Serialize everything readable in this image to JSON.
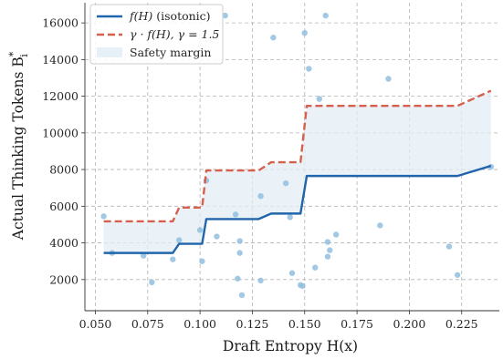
{
  "chart_data": {
    "type": "scatter",
    "xlabel": "Draft Entropy H(x)",
    "ylabel": "Actual Thinking Tokens B",
    "ylabel_sup": "*",
    "ylabel_sub": "i",
    "xlim": [
      0.045,
      0.243
    ],
    "ylim": [
      300,
      17100
    ],
    "xticks": [
      "0.050",
      "0.075",
      "0.100",
      "0.125",
      "0.150",
      "0.175",
      "0.200",
      "0.225"
    ],
    "yticks": [
      "2000",
      "4000",
      "6000",
      "8000",
      "10000",
      "12000",
      "14000",
      "16000"
    ],
    "grid": true,
    "legend_position": "top-left",
    "legend": [
      {
        "key": "isotonic",
        "label_prefix": "f(H)",
        "label_suffix": " (isotonic)"
      },
      {
        "key": "scaled",
        "label_prefix": "γ · f(H), γ = 1.5",
        "label_suffix": ""
      },
      {
        "key": "margin",
        "label_prefix": "Safety margin",
        "label_suffix": ""
      }
    ],
    "colors": {
      "scatter": "#90bfdf",
      "isotonic": "#2166ac",
      "scaled": "#d6604d",
      "margin": "#e3eef6"
    },
    "scatter_points": [
      [
        0.054,
        5450
      ],
      [
        0.058,
        3450
      ],
      [
        0.073,
        3300
      ],
      [
        0.077,
        1850
      ],
      [
        0.087,
        3100
      ],
      [
        0.09,
        4150
      ],
      [
        0.1,
        4700
      ],
      [
        0.101,
        3000
      ],
      [
        0.103,
        7400
      ],
      [
        0.108,
        4350
      ],
      [
        0.112,
        16400
      ],
      [
        0.117,
        5550
      ],
      [
        0.118,
        2050
      ],
      [
        0.119,
        3450
      ],
      [
        0.119,
        4100
      ],
      [
        0.12,
        1150
      ],
      [
        0.129,
        6550
      ],
      [
        0.129,
        1950
      ],
      [
        0.135,
        15200
      ],
      [
        0.141,
        7250
      ],
      [
        0.143,
        5400
      ],
      [
        0.144,
        2350
      ],
      [
        0.148,
        1700
      ],
      [
        0.149,
        1650
      ],
      [
        0.15,
        15450
      ],
      [
        0.152,
        13500
      ],
      [
        0.155,
        2650
      ],
      [
        0.157,
        11850
      ],
      [
        0.16,
        16400
      ],
      [
        0.161,
        3250
      ],
      [
        0.161,
        4050
      ],
      [
        0.162,
        3600
      ],
      [
        0.165,
        4450
      ],
      [
        0.186,
        4950
      ],
      [
        0.19,
        12950
      ],
      [
        0.219,
        3800
      ],
      [
        0.223,
        2250
      ],
      [
        0.239,
        8150
      ]
    ],
    "isotonic_curve": [
      [
        0.054,
        3450
      ],
      [
        0.087,
        3450
      ],
      [
        0.09,
        3950
      ],
      [
        0.101,
        3950
      ],
      [
        0.103,
        5300
      ],
      [
        0.128,
        5300
      ],
      [
        0.134,
        5600
      ],
      [
        0.148,
        5600
      ],
      [
        0.151,
        7650
      ],
      [
        0.223,
        7650
      ],
      [
        0.239,
        8200
      ]
    ],
    "scaled_curve": [
      [
        0.054,
        5175
      ],
      [
        0.087,
        5175
      ],
      [
        0.09,
        5925
      ],
      [
        0.101,
        5925
      ],
      [
        0.103,
        7950
      ],
      [
        0.128,
        7950
      ],
      [
        0.134,
        8400
      ],
      [
        0.148,
        8400
      ],
      [
        0.151,
        11475
      ],
      [
        0.223,
        11475
      ],
      [
        0.239,
        12300
      ]
    ]
  }
}
